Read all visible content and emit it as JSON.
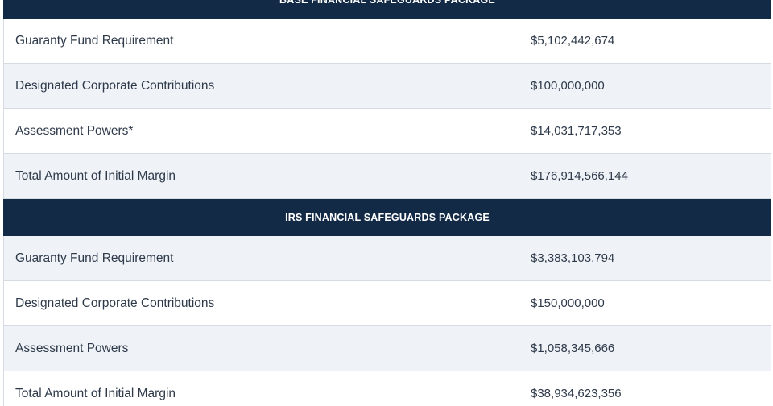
{
  "sections": [
    {
      "title": "BASE FINANCIAL SAFEGUARDS PACKAGE",
      "rows": [
        {
          "label": "Guaranty Fund Requirement",
          "value": "$5,102,442,674"
        },
        {
          "label": "Designated Corporate Contributions",
          "value": "$100,000,000"
        },
        {
          "label": "Assessment Powers*",
          "value": "$14,031,717,353"
        },
        {
          "label": "Total Amount of Initial Margin",
          "value": "$176,914,566,144"
        }
      ]
    },
    {
      "title": "IRS FINANCIAL SAFEGUARDS PACKAGE",
      "rows": [
        {
          "label": "Guaranty Fund Requirement",
          "value": "$3,383,103,794"
        },
        {
          "label": "Designated Corporate Contributions",
          "value": "$150,000,000"
        },
        {
          "label": "Assessment Powers",
          "value": "$1,058,345,666"
        },
        {
          "label": "Total Amount of Initial Margin",
          "value": "$38,934,623,356"
        }
      ]
    }
  ],
  "colors": {
    "header_bg": "#132a46",
    "header_text": "#ffffff",
    "row_alt_bg": "#eff2f6",
    "border": "#d6dbe1"
  }
}
